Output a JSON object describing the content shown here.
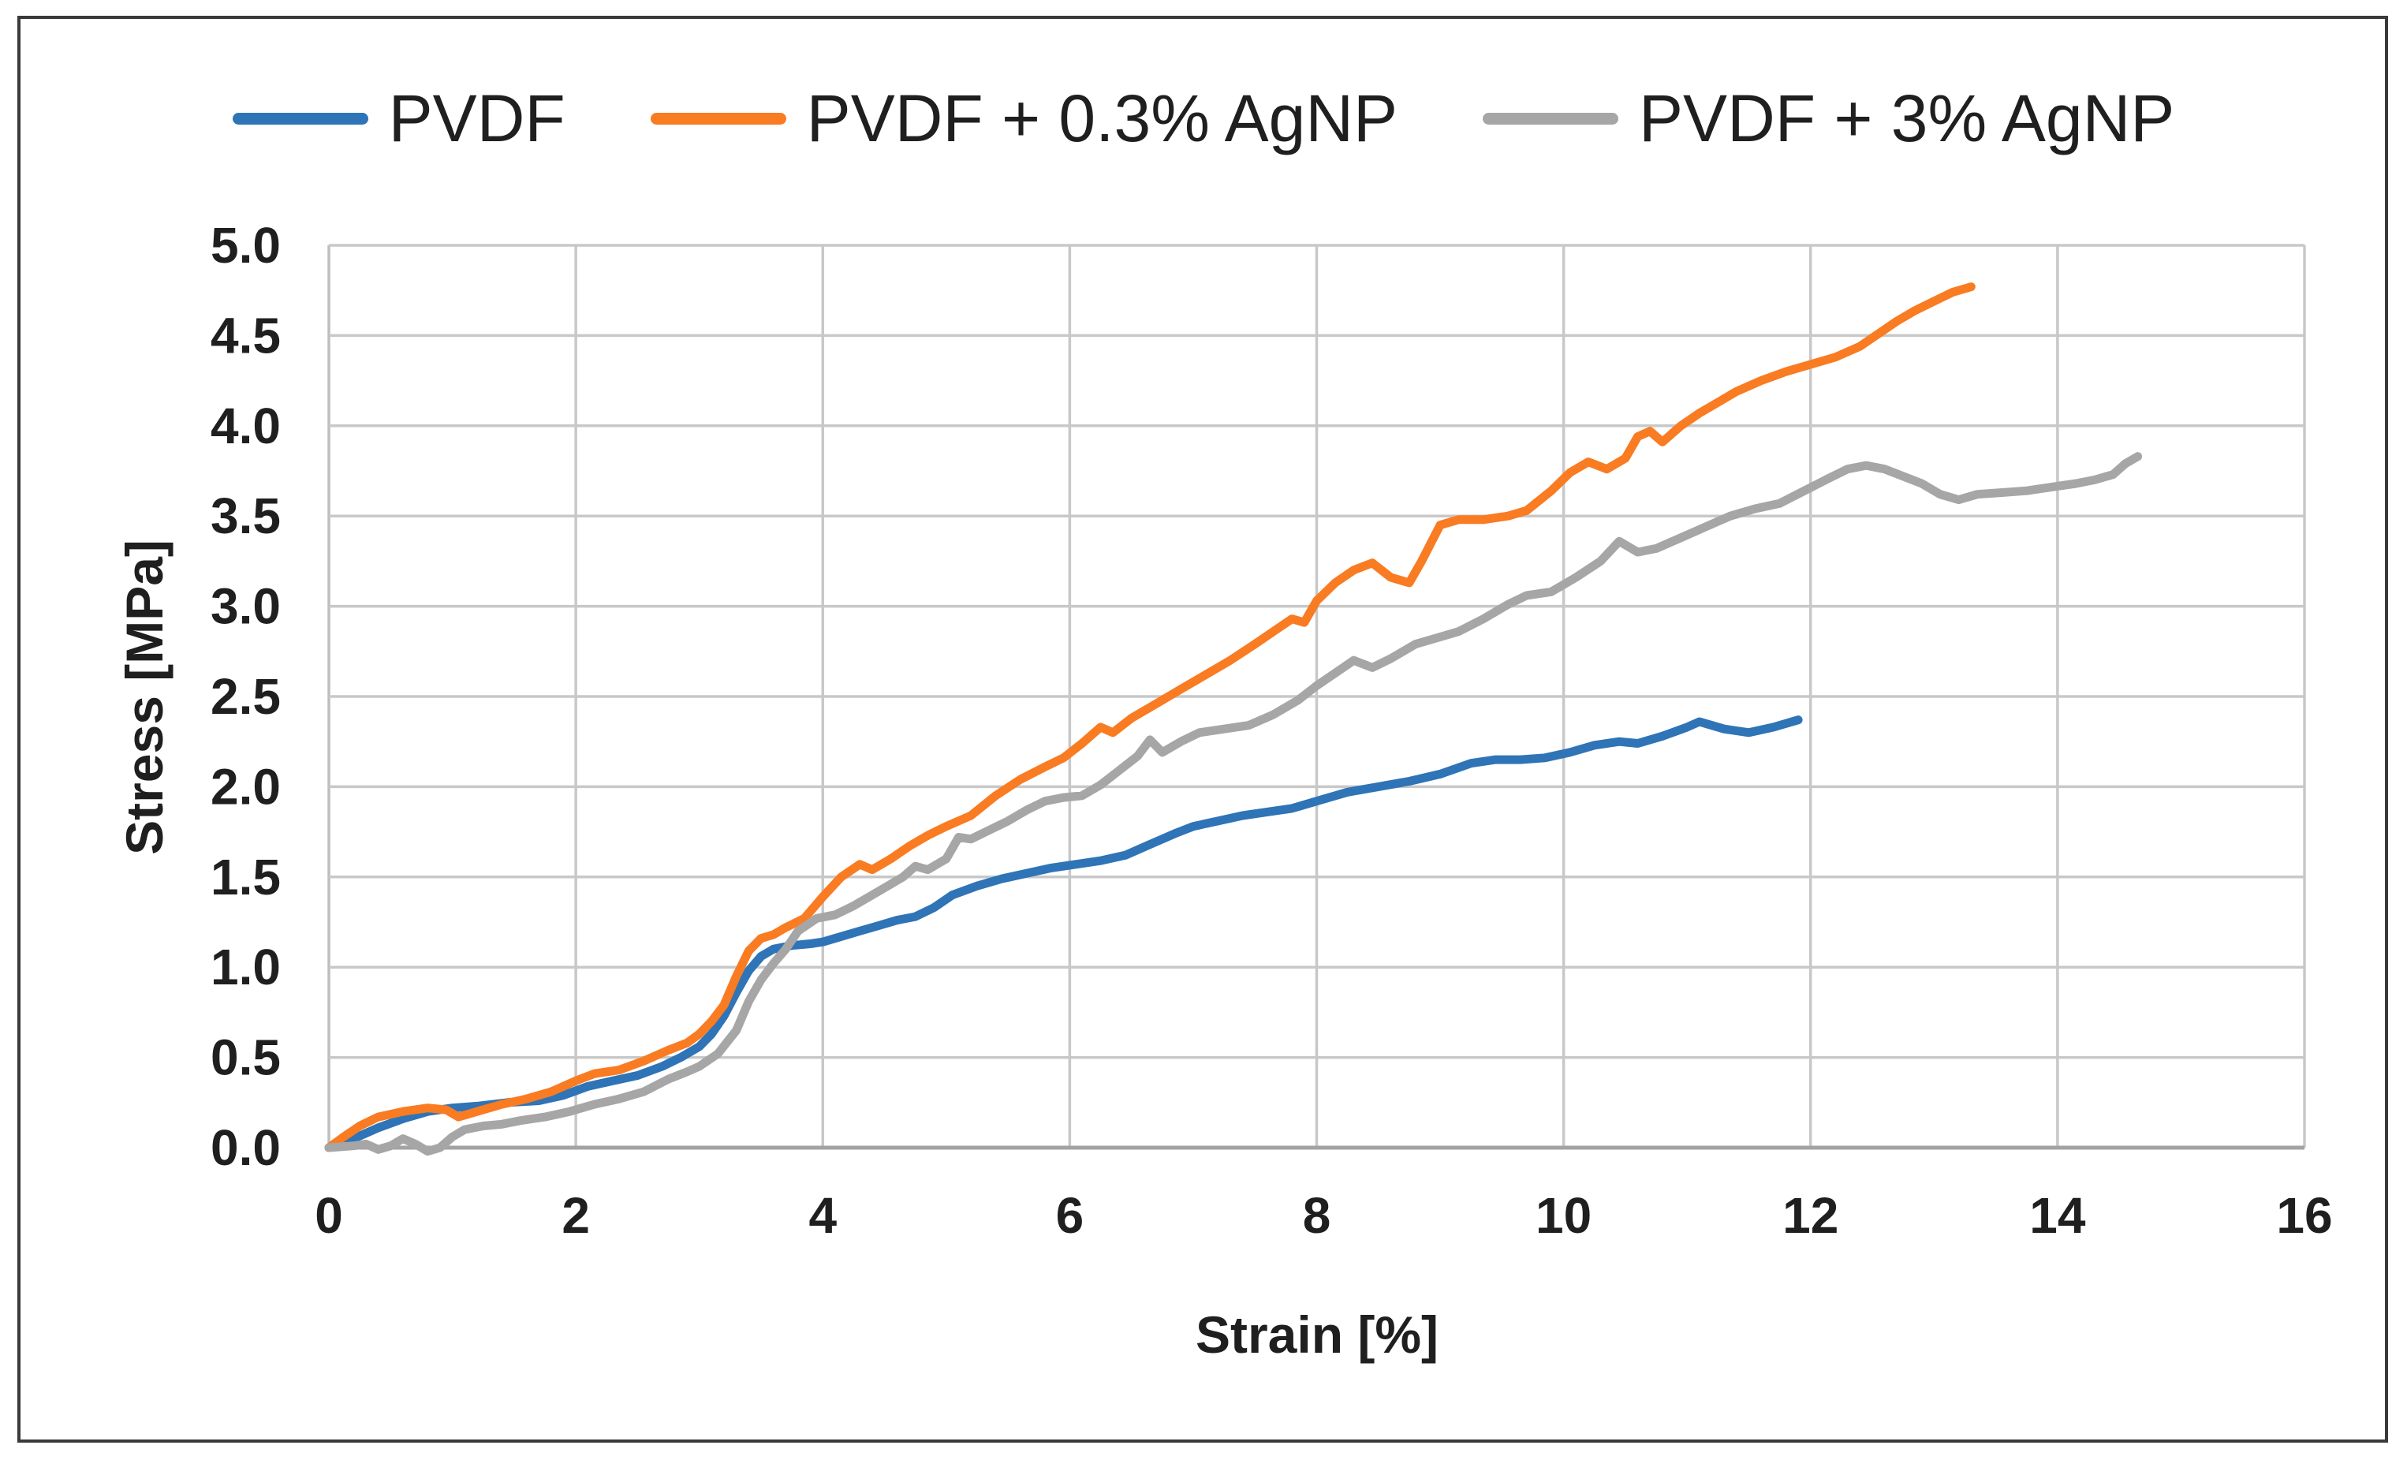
{
  "frame": {
    "border_color": "#3a3a3a",
    "background": "#ffffff"
  },
  "chart_data": {
    "type": "line",
    "title": "",
    "xlabel": "Strain [%]",
    "ylabel": "Stress [MPa]",
    "xlim": [
      0,
      16
    ],
    "ylim": [
      0,
      5
    ],
    "x_ticks": [
      "0",
      "2",
      "4",
      "6",
      "8",
      "10",
      "12",
      "14",
      "16"
    ],
    "y_ticks": [
      "0.0",
      "0.5",
      "1.0",
      "1.5",
      "2.0",
      "2.5",
      "3.0",
      "3.5",
      "4.0",
      "4.5",
      "5.0"
    ],
    "grid": true,
    "grid_color": "#c8c8c8",
    "axis_line_color": "#a3a3a3",
    "tick_label_color": "#1f1f1f",
    "legend_position": "top",
    "series": [
      {
        "name": "PVDF",
        "color": "#2E74B6",
        "points": [
          [
            0,
            0
          ],
          [
            0.2,
            0.05
          ],
          [
            0.4,
            0.11
          ],
          [
            0.6,
            0.16
          ],
          [
            0.8,
            0.2
          ],
          [
            1,
            0.22
          ],
          [
            1.2,
            0.23
          ],
          [
            1.45,
            0.25
          ],
          [
            1.7,
            0.26
          ],
          [
            1.9,
            0.29
          ],
          [
            2.1,
            0.34
          ],
          [
            2.3,
            0.37
          ],
          [
            2.5,
            0.4
          ],
          [
            2.7,
            0.45
          ],
          [
            2.85,
            0.5
          ],
          [
            3,
            0.56
          ],
          [
            3.1,
            0.63
          ],
          [
            3.2,
            0.73
          ],
          [
            3.3,
            0.86
          ],
          [
            3.4,
            0.98
          ],
          [
            3.5,
            1.06
          ],
          [
            3.6,
            1.1
          ],
          [
            3.75,
            1.12
          ],
          [
            3.9,
            1.13
          ],
          [
            4,
            1.14
          ],
          [
            4.15,
            1.17
          ],
          [
            4.3,
            1.2
          ],
          [
            4.45,
            1.23
          ],
          [
            4.6,
            1.26
          ],
          [
            4.75,
            1.28
          ],
          [
            4.9,
            1.33
          ],
          [
            5.05,
            1.4
          ],
          [
            5.25,
            1.45
          ],
          [
            5.45,
            1.49
          ],
          [
            5.65,
            1.52
          ],
          [
            5.85,
            1.55
          ],
          [
            6.05,
            1.57
          ],
          [
            6.25,
            1.59
          ],
          [
            6.45,
            1.62
          ],
          [
            6.65,
            1.68
          ],
          [
            6.85,
            1.74
          ],
          [
            7,
            1.78
          ],
          [
            7.2,
            1.81
          ],
          [
            7.4,
            1.84
          ],
          [
            7.6,
            1.86
          ],
          [
            7.8,
            1.88
          ],
          [
            8,
            1.92
          ],
          [
            8.25,
            1.97
          ],
          [
            8.5,
            2
          ],
          [
            8.75,
            2.03
          ],
          [
            9,
            2.07
          ],
          [
            9.25,
            2.13
          ],
          [
            9.45,
            2.15
          ],
          [
            9.65,
            2.15
          ],
          [
            9.85,
            2.16
          ],
          [
            10.05,
            2.19
          ],
          [
            10.25,
            2.23
          ],
          [
            10.45,
            2.25
          ],
          [
            10.6,
            2.24
          ],
          [
            10.8,
            2.28
          ],
          [
            11,
            2.33
          ],
          [
            11.1,
            2.36
          ],
          [
            11.3,
            2.32
          ],
          [
            11.5,
            2.3
          ],
          [
            11.7,
            2.33
          ],
          [
            11.9,
            2.37
          ]
        ]
      },
      {
        "name": "PVDF + 0.3% AgNP",
        "color": "#F97B22",
        "points": [
          [
            0,
            0
          ],
          [
            0.12,
            0.06
          ],
          [
            0.25,
            0.12
          ],
          [
            0.4,
            0.17
          ],
          [
            0.6,
            0.2
          ],
          [
            0.8,
            0.22
          ],
          [
            0.95,
            0.21
          ],
          [
            1.05,
            0.17
          ],
          [
            1.2,
            0.2
          ],
          [
            1.4,
            0.24
          ],
          [
            1.6,
            0.27
          ],
          [
            1.8,
            0.31
          ],
          [
            2,
            0.37
          ],
          [
            2.15,
            0.41
          ],
          [
            2.35,
            0.43
          ],
          [
            2.55,
            0.48
          ],
          [
            2.75,
            0.54
          ],
          [
            2.9,
            0.58
          ],
          [
            3,
            0.63
          ],
          [
            3.1,
            0.7
          ],
          [
            3.2,
            0.79
          ],
          [
            3.3,
            0.95
          ],
          [
            3.4,
            1.09
          ],
          [
            3.5,
            1.16
          ],
          [
            3.6,
            1.18
          ],
          [
            3.7,
            1.22
          ],
          [
            3.85,
            1.27
          ],
          [
            4,
            1.39
          ],
          [
            4.15,
            1.5
          ],
          [
            4.3,
            1.57
          ],
          [
            4.4,
            1.54
          ],
          [
            4.55,
            1.6
          ],
          [
            4.7,
            1.67
          ],
          [
            4.85,
            1.73
          ],
          [
            5,
            1.78
          ],
          [
            5.2,
            1.84
          ],
          [
            5.4,
            1.95
          ],
          [
            5.6,
            2.04
          ],
          [
            5.8,
            2.11
          ],
          [
            5.95,
            2.16
          ],
          [
            6.1,
            2.24
          ],
          [
            6.25,
            2.33
          ],
          [
            6.35,
            2.3
          ],
          [
            6.5,
            2.38
          ],
          [
            6.7,
            2.46
          ],
          [
            6.9,
            2.54
          ],
          [
            7.1,
            2.62
          ],
          [
            7.3,
            2.7
          ],
          [
            7.5,
            2.79
          ],
          [
            7.65,
            2.86
          ],
          [
            7.8,
            2.93
          ],
          [
            7.9,
            2.91
          ],
          [
            8,
            3.03
          ],
          [
            8.15,
            3.13
          ],
          [
            8.3,
            3.2
          ],
          [
            8.45,
            3.24
          ],
          [
            8.6,
            3.16
          ],
          [
            8.75,
            3.13
          ],
          [
            8.85,
            3.25
          ],
          [
            9,
            3.45
          ],
          [
            9.15,
            3.48
          ],
          [
            9.35,
            3.48
          ],
          [
            9.55,
            3.5
          ],
          [
            9.7,
            3.53
          ],
          [
            9.9,
            3.64
          ],
          [
            10.05,
            3.74
          ],
          [
            10.2,
            3.8
          ],
          [
            10.35,
            3.76
          ],
          [
            10.5,
            3.82
          ],
          [
            10.6,
            3.94
          ],
          [
            10.7,
            3.97
          ],
          [
            10.8,
            3.91
          ],
          [
            10.95,
            4
          ],
          [
            11.1,
            4.07
          ],
          [
            11.25,
            4.13
          ],
          [
            11.4,
            4.19
          ],
          [
            11.6,
            4.25
          ],
          [
            11.8,
            4.3
          ],
          [
            12,
            4.34
          ],
          [
            12.2,
            4.38
          ],
          [
            12.4,
            4.44
          ],
          [
            12.55,
            4.51
          ],
          [
            12.7,
            4.58
          ],
          [
            12.85,
            4.64
          ],
          [
            13,
            4.69
          ],
          [
            13.15,
            4.74
          ],
          [
            13.3,
            4.77
          ]
        ]
      },
      {
        "name": "PVDF + 3% AgNP",
        "color": "#A6A6A6",
        "points": [
          [
            0,
            0
          ],
          [
            0.2,
            0.01
          ],
          [
            0.3,
            0.02
          ],
          [
            0.4,
            -0.01
          ],
          [
            0.5,
            0.01
          ],
          [
            0.6,
            0.05
          ],
          [
            0.7,
            0.02
          ],
          [
            0.8,
            -0.02
          ],
          [
            0.9,
            0
          ],
          [
            1,
            0.06
          ],
          [
            1.1,
            0.1
          ],
          [
            1.25,
            0.12
          ],
          [
            1.4,
            0.13
          ],
          [
            1.55,
            0.15
          ],
          [
            1.75,
            0.17
          ],
          [
            1.95,
            0.2
          ],
          [
            2.15,
            0.24
          ],
          [
            2.35,
            0.27
          ],
          [
            2.55,
            0.31
          ],
          [
            2.75,
            0.38
          ],
          [
            2.9,
            0.42
          ],
          [
            3,
            0.45
          ],
          [
            3.15,
            0.52
          ],
          [
            3.3,
            0.65
          ],
          [
            3.4,
            0.81
          ],
          [
            3.5,
            0.93
          ],
          [
            3.6,
            1.02
          ],
          [
            3.7,
            1.1
          ],
          [
            3.8,
            1.2
          ],
          [
            3.95,
            1.27
          ],
          [
            4.1,
            1.29
          ],
          [
            4.25,
            1.34
          ],
          [
            4.4,
            1.4
          ],
          [
            4.55,
            1.46
          ],
          [
            4.65,
            1.5
          ],
          [
            4.75,
            1.56
          ],
          [
            4.85,
            1.54
          ],
          [
            5,
            1.6
          ],
          [
            5.1,
            1.72
          ],
          [
            5.2,
            1.71
          ],
          [
            5.35,
            1.76
          ],
          [
            5.5,
            1.81
          ],
          [
            5.65,
            1.87
          ],
          [
            5.8,
            1.92
          ],
          [
            5.95,
            1.94
          ],
          [
            6.1,
            1.95
          ],
          [
            6.25,
            2.01
          ],
          [
            6.4,
            2.09
          ],
          [
            6.55,
            2.17
          ],
          [
            6.65,
            2.26
          ],
          [
            6.75,
            2.19
          ],
          [
            6.9,
            2.25
          ],
          [
            7.05,
            2.3
          ],
          [
            7.25,
            2.32
          ],
          [
            7.45,
            2.34
          ],
          [
            7.65,
            2.4
          ],
          [
            7.85,
            2.48
          ],
          [
            8,
            2.56
          ],
          [
            8.15,
            2.63
          ],
          [
            8.3,
            2.7
          ],
          [
            8.45,
            2.66
          ],
          [
            8.6,
            2.71
          ],
          [
            8.8,
            2.79
          ],
          [
            9,
            2.83
          ],
          [
            9.15,
            2.86
          ],
          [
            9.35,
            2.93
          ],
          [
            9.55,
            3.01
          ],
          [
            9.7,
            3.06
          ],
          [
            9.9,
            3.08
          ],
          [
            10.1,
            3.16
          ],
          [
            10.3,
            3.25
          ],
          [
            10.45,
            3.36
          ],
          [
            10.6,
            3.3
          ],
          [
            10.75,
            3.32
          ],
          [
            10.95,
            3.38
          ],
          [
            11.15,
            3.44
          ],
          [
            11.35,
            3.5
          ],
          [
            11.55,
            3.54
          ],
          [
            11.75,
            3.57
          ],
          [
            11.95,
            3.64
          ],
          [
            12.15,
            3.71
          ],
          [
            12.3,
            3.76
          ],
          [
            12.45,
            3.78
          ],
          [
            12.6,
            3.76
          ],
          [
            12.75,
            3.72
          ],
          [
            12.9,
            3.68
          ],
          [
            13.05,
            3.62
          ],
          [
            13.2,
            3.59
          ],
          [
            13.35,
            3.62
          ],
          [
            13.55,
            3.63
          ],
          [
            13.75,
            3.64
          ],
          [
            13.95,
            3.66
          ],
          [
            14.15,
            3.68
          ],
          [
            14.3,
            3.7
          ],
          [
            14.45,
            3.73
          ],
          [
            14.55,
            3.79
          ],
          [
            14.65,
            3.83
          ]
        ]
      }
    ]
  }
}
